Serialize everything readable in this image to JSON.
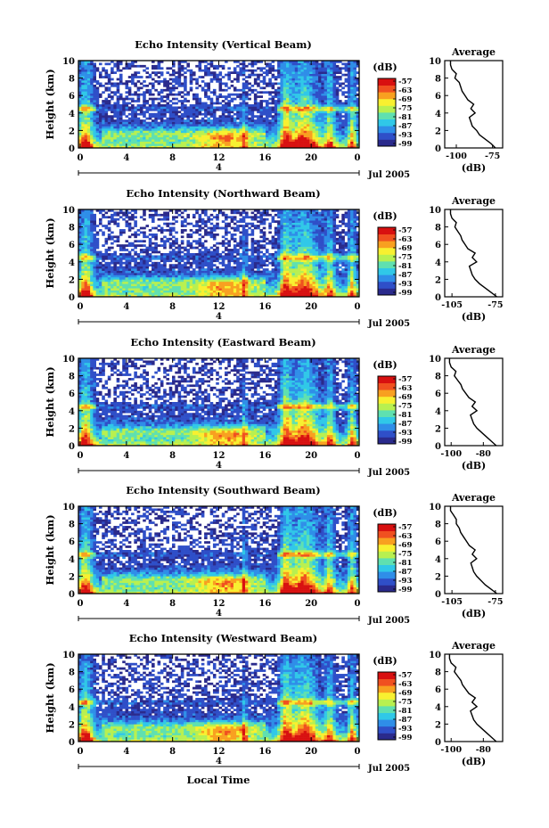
{
  "figure": {
    "xlabel": "Local Time",
    "date_label": "Jul 2005",
    "day_marker": "4",
    "colorbar_unit": "(dB)",
    "average_title": "Average",
    "average_xlabel": "(dB)",
    "colorbar_ticks": [
      "-57",
      "-63",
      "-69",
      "-75",
      "-81",
      "-87",
      "-93",
      "-99"
    ],
    "colormap": [
      "#2a2a8c",
      "#2f4fc8",
      "#2f8ee8",
      "#30c8e8",
      "#5fe0b0",
      "#b8f050",
      "#f8f030",
      "#f8a020",
      "#f05020",
      "#d81010"
    ]
  },
  "chart_data": [
    {
      "type": "heatmap",
      "title": "Echo Intensity (Vertical Beam)",
      "ylabel": "Height (km)",
      "ylim": [
        0,
        10
      ],
      "yticks": [
        0,
        2,
        4,
        6,
        8,
        10
      ],
      "xlim": [
        0,
        24
      ],
      "xtick_labels": [
        "0",
        "4",
        "8",
        "12",
        "16",
        "20",
        "0"
      ],
      "colorbar": {
        "ticks": [
          -57,
          -63,
          -69,
          -75,
          -81,
          -87,
          -93,
          -99
        ],
        "unit": "dB"
      },
      "average": {
        "title": "Average",
        "xlabel": "(dB)",
        "xticks": [
          "-100",
          "-75"
        ],
        "xlim": [
          -108,
          -68
        ],
        "profile": [
          [
            -73,
            0
          ],
          [
            -76,
            0.5
          ],
          [
            -80,
            1
          ],
          [
            -84,
            1.5
          ],
          [
            -86,
            2
          ],
          [
            -89,
            2.5
          ],
          [
            -90,
            3
          ],
          [
            -91,
            3.5
          ],
          [
            -87,
            4
          ],
          [
            -90,
            4.5
          ],
          [
            -88,
            5
          ],
          [
            -92,
            5.5
          ],
          [
            -94,
            6
          ],
          [
            -96,
            6.5
          ],
          [
            -97,
            7
          ],
          [
            -98,
            7.5
          ],
          [
            -101,
            8
          ],
          [
            -100,
            8.5
          ],
          [
            -103,
            9
          ],
          [
            -104,
            9.5
          ],
          [
            -104,
            10
          ]
        ]
      }
    },
    {
      "type": "heatmap",
      "title": "Echo Intensity (Northward Beam)",
      "ylabel": "Height (km)",
      "ylim": [
        0,
        10
      ],
      "yticks": [
        0,
        2,
        4,
        6,
        8,
        10
      ],
      "xlim": [
        0,
        24
      ],
      "xtick_labels": [
        "0",
        "4",
        "8",
        "12",
        "16",
        "20",
        "0"
      ],
      "colorbar": {
        "ticks": [
          -57,
          -63,
          -69,
          -75,
          -81,
          -87,
          -93,
          -99
        ],
        "unit": "dB"
      },
      "average": {
        "title": "Average",
        "xlabel": "(dB)",
        "xticks": [
          "-105",
          "-75"
        ],
        "xlim": [
          -110,
          -70
        ],
        "profile": [
          [
            -74,
            0
          ],
          [
            -78,
            0.5
          ],
          [
            -82,
            1
          ],
          [
            -86,
            1.5
          ],
          [
            -89,
            2
          ],
          [
            -91,
            2.5
          ],
          [
            -92,
            3
          ],
          [
            -93,
            3.5
          ],
          [
            -88,
            4
          ],
          [
            -91,
            4.5
          ],
          [
            -89,
            5
          ],
          [
            -94,
            5.5
          ],
          [
            -96,
            6
          ],
          [
            -98,
            6.5
          ],
          [
            -99,
            7
          ],
          [
            -101,
            7.5
          ],
          [
            -103,
            8
          ],
          [
            -102,
            8.5
          ],
          [
            -105,
            9
          ],
          [
            -106,
            9.5
          ],
          [
            -106,
            10
          ]
        ]
      }
    },
    {
      "type": "heatmap",
      "title": "Echo Intensity (Eastward Beam)",
      "ylabel": "Height (km)",
      "ylim": [
        0,
        10
      ],
      "yticks": [
        0,
        2,
        4,
        6,
        8,
        10
      ],
      "xlim": [
        0,
        24
      ],
      "xtick_labels": [
        "0",
        "4",
        "8",
        "12",
        "16",
        "20",
        "0"
      ],
      "colorbar": {
        "ticks": [
          -57,
          -63,
          -69,
          -75,
          -81,
          -87,
          -93,
          -99
        ],
        "unit": "dB"
      },
      "average": {
        "title": "Average",
        "xlabel": "(dB)",
        "xticks": [
          "-100",
          "-80"
        ],
        "xlim": [
          -104,
          -68
        ],
        "profile": [
          [
            -72,
            0
          ],
          [
            -75,
            0.5
          ],
          [
            -78,
            1
          ],
          [
            -81,
            1.5
          ],
          [
            -84,
            2
          ],
          [
            -86,
            2.5
          ],
          [
            -87,
            3
          ],
          [
            -88,
            3.5
          ],
          [
            -84,
            4
          ],
          [
            -87,
            4.5
          ],
          [
            -85,
            5
          ],
          [
            -89,
            5.5
          ],
          [
            -91,
            6
          ],
          [
            -93,
            6.5
          ],
          [
            -94,
            7
          ],
          [
            -96,
            7.5
          ],
          [
            -98,
            8
          ],
          [
            -97,
            8.5
          ],
          [
            -100,
            9
          ],
          [
            -101,
            9.5
          ],
          [
            -101,
            10
          ]
        ]
      }
    },
    {
      "type": "heatmap",
      "title": "Echo Intensity (Southward Beam)",
      "ylabel": "Height (km)",
      "ylim": [
        0,
        10
      ],
      "yticks": [
        0,
        2,
        4,
        6,
        8,
        10
      ],
      "xlim": [
        0,
        24
      ],
      "xtick_labels": [
        "0",
        "4",
        "8",
        "12",
        "16",
        "20",
        "0"
      ],
      "colorbar": {
        "ticks": [
          -57,
          -63,
          -69,
          -75,
          -81,
          -87,
          -93,
          -99
        ],
        "unit": "dB"
      },
      "average": {
        "title": "Average",
        "xlabel": "(dB)",
        "xticks": [
          "-105",
          "-75"
        ],
        "xlim": [
          -110,
          -70
        ],
        "profile": [
          [
            -74,
            0
          ],
          [
            -78,
            0.5
          ],
          [
            -82,
            1
          ],
          [
            -85,
            1.5
          ],
          [
            -88,
            2
          ],
          [
            -90,
            2.5
          ],
          [
            -91,
            3
          ],
          [
            -92,
            3.5
          ],
          [
            -88,
            4
          ],
          [
            -91,
            4.5
          ],
          [
            -89,
            5
          ],
          [
            -93,
            5.5
          ],
          [
            -95,
            6
          ],
          [
            -97,
            6.5
          ],
          [
            -99,
            7
          ],
          [
            -100,
            7.5
          ],
          [
            -102,
            8
          ],
          [
            -102,
            8.5
          ],
          [
            -104,
            9
          ],
          [
            -106,
            9.5
          ],
          [
            -106,
            10
          ]
        ]
      }
    },
    {
      "type": "heatmap",
      "title": "Echo Intensity (Westward Beam)",
      "ylabel": "Height (km)",
      "ylim": [
        0,
        10
      ],
      "yticks": [
        0,
        2,
        4,
        6,
        8,
        10
      ],
      "xlim": [
        0,
        24
      ],
      "xtick_labels": [
        "0",
        "4",
        "8",
        "12",
        "16",
        "20",
        "0"
      ],
      "colorbar": {
        "ticks": [
          -57,
          -63,
          -69,
          -75,
          -81,
          -87,
          -93,
          -99
        ],
        "unit": "dB"
      },
      "average": {
        "title": "Average",
        "xlabel": "(dB)",
        "xticks": [
          "-100",
          "-80"
        ],
        "xlim": [
          -104,
          -68
        ],
        "profile": [
          [
            -72,
            0
          ],
          [
            -75,
            0.5
          ],
          [
            -78,
            1
          ],
          [
            -81,
            1.5
          ],
          [
            -84,
            2
          ],
          [
            -86,
            2.5
          ],
          [
            -87,
            3
          ],
          [
            -88,
            3.5
          ],
          [
            -84,
            4
          ],
          [
            -87,
            4.5
          ],
          [
            -85,
            5
          ],
          [
            -89,
            5.5
          ],
          [
            -91,
            6
          ],
          [
            -93,
            6.5
          ],
          [
            -94,
            7
          ],
          [
            -96,
            7.5
          ],
          [
            -98,
            8
          ],
          [
            -97,
            8.5
          ],
          [
            -100,
            9
          ],
          [
            -101,
            9.5
          ],
          [
            -101,
            10
          ]
        ]
      }
    }
  ]
}
